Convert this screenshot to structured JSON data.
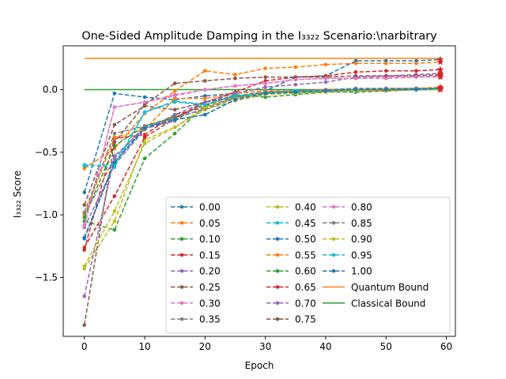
{
  "chart_data": {
    "type": "line",
    "title": "One-Sided Amplitude Damping in the I₃₃₂₂ Scenario:\\narbitrary",
    "xlabel": "Epoch",
    "ylabel": "I₃₃₂₂ Score",
    "xlim": [
      -3.5,
      61.5
    ],
    "ylim": [
      -1.97,
      0.35
    ],
    "xticks": [
      0,
      10,
      20,
      30,
      40,
      50,
      60
    ],
    "yticks": [
      -1.5,
      -1.0,
      -0.5,
      0.0
    ],
    "ytick_labels": [
      "−1.5",
      "−1.0",
      "−0.5",
      "0.0"
    ],
    "x": [
      0,
      5,
      10,
      15,
      20,
      25,
      30,
      35,
      40,
      45,
      50,
      55,
      59
    ],
    "legend_position": "lower-right",
    "legend_columns": 3,
    "series": [
      {
        "name": "0.00",
        "color": "#1f77b4",
        "values": [
          -0.82,
          -0.03,
          -0.06,
          -0.08,
          -0.05,
          -0.03,
          -0.01,
          0.1,
          0.11,
          0.23,
          0.23,
          0.23,
          0.24
        ]
      },
      {
        "name": "0.05",
        "color": "#ff7f0e",
        "values": [
          -0.63,
          -0.47,
          -0.19,
          -0.01,
          0.15,
          0.12,
          0.17,
          0.18,
          0.2,
          0.21,
          0.21,
          0.21,
          0.22
        ]
      },
      {
        "name": "0.10",
        "color": "#2ca02c",
        "values": [
          -1.05,
          -1.12,
          -0.55,
          -0.35,
          -0.13,
          -0.04,
          -0.06,
          -0.04,
          -0.02,
          -0.02,
          -0.01,
          0.0,
          0.0
        ]
      },
      {
        "name": "0.15",
        "color": "#d62728",
        "values": [
          -1.28,
          -0.39,
          -0.36,
          -0.2,
          -0.14,
          -0.06,
          -0.02,
          -0.02,
          -0.01,
          -0.01,
          -0.01,
          0.0,
          0.01
        ]
      },
      {
        "name": "0.20",
        "color": "#9467bd",
        "values": [
          -1.1,
          -0.6,
          -0.32,
          -0.2,
          -0.1,
          -0.06,
          -0.03,
          -0.02,
          -0.02,
          -0.01,
          0.0,
          0.0,
          0.01
        ]
      },
      {
        "name": "0.25",
        "color": "#8c564b",
        "values": [
          -0.92,
          -0.28,
          -0.13,
          -0.16,
          -0.1,
          -0.05,
          -0.02,
          -0.02,
          -0.01,
          -0.01,
          0.0,
          0.0,
          0.0
        ]
      },
      {
        "name": "0.30",
        "color": "#e377c2",
        "values": [
          -1.08,
          -0.14,
          -0.1,
          -0.04,
          0.0,
          0.03,
          0.05,
          0.08,
          0.09,
          0.09,
          0.1,
          0.1,
          0.11
        ]
      },
      {
        "name": "0.35",
        "color": "#7f7f7f",
        "values": [
          -1.0,
          -0.55,
          -0.29,
          -0.22,
          -0.16,
          -0.07,
          -0.02,
          -0.01,
          0.0,
          0.0,
          0.0,
          0.01,
          0.01
        ]
      },
      {
        "name": "0.40",
        "color": "#bcbd22",
        "values": [
          -1.43,
          -1.05,
          -0.4,
          -0.3,
          -0.16,
          -0.09,
          -0.04,
          -0.03,
          -0.02,
          -0.01,
          -0.01,
          0.0,
          0.0
        ]
      },
      {
        "name": "0.45",
        "color": "#17becf",
        "values": [
          -0.6,
          -0.62,
          -0.18,
          -0.09,
          -0.12,
          -0.05,
          -0.03,
          -0.01,
          -0.01,
          0.0,
          0.0,
          0.0,
          0.01
        ]
      },
      {
        "name": "0.50",
        "color": "#1f77b4",
        "values": [
          -1.18,
          -0.58,
          -0.3,
          -0.24,
          -0.2,
          -0.08,
          -0.03,
          -0.02,
          -0.01,
          0.0,
          0.0,
          0.01,
          0.01
        ]
      },
      {
        "name": "0.55",
        "color": "#ff7f0e",
        "values": [
          -1.0,
          -0.38,
          -0.32,
          -0.07,
          -0.07,
          -0.03,
          -0.01,
          -0.01,
          0.0,
          0.0,
          0.01,
          0.01,
          0.02
        ]
      },
      {
        "name": "0.60",
        "color": "#2ca02c",
        "values": [
          -1.02,
          -0.45,
          -0.29,
          -0.22,
          -0.12,
          -0.05,
          -0.03,
          -0.02,
          -0.01,
          0.0,
          0.0,
          0.0,
          0.01
        ]
      },
      {
        "name": "0.65",
        "color": "#d62728",
        "values": [
          -1.26,
          -0.85,
          -0.38,
          -0.23,
          -0.1,
          -0.02,
          0.07,
          0.1,
          0.11,
          0.14,
          0.15,
          0.15,
          0.16
        ]
      },
      {
        "name": "0.70",
        "color": "#9467bd",
        "values": [
          -1.65,
          -0.53,
          -0.31,
          -0.25,
          -0.1,
          -0.03,
          0.02,
          0.04,
          0.06,
          0.1,
          0.11,
          0.12,
          0.13
        ]
      },
      {
        "name": "0.75",
        "color": "#8c564b",
        "values": [
          -1.88,
          -0.42,
          -0.12,
          0.05,
          0.07,
          0.09,
          0.1,
          0.1,
          0.1,
          0.11,
          0.11,
          0.11,
          0.12
        ]
      },
      {
        "name": "0.80",
        "color": "#e377c2",
        "values": [
          -1.09,
          -0.14,
          -0.1,
          -0.05,
          0.0,
          0.03,
          0.05,
          0.08,
          0.09,
          0.09,
          0.09,
          0.1,
          0.1
        ]
      },
      {
        "name": "0.85",
        "color": "#7f7f7f",
        "values": [
          -0.98,
          -0.35,
          -0.29,
          -0.23,
          -0.15,
          -0.06,
          -0.02,
          -0.01,
          0.0,
          0.01,
          0.01,
          0.01,
          0.01
        ]
      },
      {
        "name": "0.90",
        "color": "#bcbd22",
        "values": [
          -1.41,
          -0.97,
          -0.43,
          -0.3,
          -0.14,
          -0.07,
          -0.03,
          -0.02,
          -0.01,
          -0.01,
          0.0,
          0.0,
          0.0
        ]
      },
      {
        "name": "0.95",
        "color": "#17becf",
        "values": [
          -0.61,
          -0.6,
          -0.18,
          -0.1,
          -0.12,
          -0.05,
          -0.03,
          -0.01,
          -0.01,
          0.0,
          0.0,
          0.0,
          0.01
        ]
      },
      {
        "name": "1.00",
        "color": "#1f77b4",
        "values": [
          -1.19,
          -0.58,
          -0.31,
          -0.24,
          -0.2,
          -0.08,
          -0.03,
          -0.02,
          -0.01,
          0.0,
          0.0,
          0.0,
          0.01
        ]
      }
    ],
    "reference_lines": [
      {
        "name": "Quantum Bound",
        "color": "#ff7f0e",
        "y": 0.25,
        "x": [
          0,
          59
        ]
      },
      {
        "name": "Classical Bound",
        "color": "#2ca02c",
        "y": 0.0,
        "x": [
          0,
          59
        ]
      }
    ]
  }
}
